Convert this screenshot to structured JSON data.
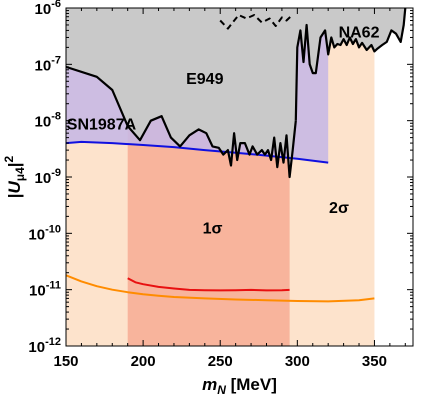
{
  "chart_data": {
    "type": "area",
    "xlabel": "m_N [MeV]",
    "ylabel": "|U_μ4|^2",
    "xlim": [
      150,
      375
    ],
    "ylim_log10": [
      -12,
      -6
    ],
    "y_scale": "log",
    "x_ticks": [
      150,
      200,
      250,
      300,
      350
    ],
    "x_tick_labels": [
      "150",
      "200",
      "250",
      "300",
      "350"
    ],
    "y_ticks_log10": [
      -12,
      -11,
      -10,
      -9,
      -8,
      -7,
      -6
    ],
    "y_tick_labels": [
      {
        "base": "10",
        "exp": "-12"
      },
      {
        "base": "10",
        "exp": "-11"
      },
      {
        "base": "10",
        "exp": "-10"
      },
      {
        "base": "10",
        "exp": "-9"
      },
      {
        "base": "10",
        "exp": "-8"
      },
      {
        "base": "10",
        "exp": "-7"
      },
      {
        "base": "10",
        "exp": "-6"
      }
    ],
    "bands": [
      {
        "name": "2σ",
        "x_range": [
          150,
          350
        ],
        "color": "#fde3cc"
      },
      {
        "name": "1σ",
        "x_range": [
          190,
          295
        ],
        "color": "#f8b49c"
      }
    ],
    "excluded_regions": [
      {
        "name": "SN1987A",
        "color": "#c8b8e4",
        "x_range": [
          150,
          320
        ]
      },
      {
        "name": "E949",
        "color": "#c9c9c9"
      },
      {
        "name": "NA62",
        "color": "#c9c9c9"
      }
    ],
    "series": [
      {
        "name": "SN1987A",
        "color": "#1010e0",
        "x": [
          150,
          160,
          180,
          200,
          220,
          240,
          260,
          280,
          300,
          320
        ],
        "y": [
          4e-09,
          4.2e-09,
          4e-09,
          3.7e-09,
          3.4e-09,
          3e-09,
          2.7e-09,
          2.4e-09,
          2.1e-09,
          1.8e-09
        ]
      },
      {
        "name": "E949",
        "color": "#000000",
        "x": [
          150,
          170,
          180,
          190,
          198,
          205,
          212,
          218,
          224,
          230,
          236,
          241,
          245,
          249,
          252,
          255,
          257,
          259,
          261,
          263,
          266,
          269,
          271,
          274,
          277,
          279,
          281,
          283,
          285,
          287,
          289,
          291,
          293,
          295,
          297,
          299
        ],
        "y": [
          9e-08,
          6e-08,
          3.5e-08,
          8e-09,
          4.5e-09,
          1e-08,
          1.2e-08,
          5e-09,
          3.5e-09,
          5.5e-09,
          7e-09,
          6e-09,
          3.5e-09,
          3.3e-09,
          2.5e-09,
          3e-09,
          1.6e-09,
          6e-09,
          2e-09,
          4e-09,
          4e-09,
          2.5e-09,
          3.5e-09,
          2.5e-09,
          3e-09,
          2.5e-09,
          3e-09,
          2e-09,
          5e-09,
          1.5e-09,
          4e-09,
          1.8e-09,
          5.5e-09,
          1e-09,
          3e-09,
          1e-08
        ]
      },
      {
        "name": "NA62",
        "color": "#000000",
        "x": [
          299,
          300,
          302,
          304,
          306,
          308,
          310,
          312,
          315,
          318,
          320,
          322,
          324,
          326,
          328,
          330,
          332,
          334,
          336,
          338,
          340,
          342,
          345,
          348,
          350,
          352,
          355,
          358,
          361,
          364,
          367,
          369,
          370
        ],
        "y": [
          1e-08,
          2e-07,
          4e-07,
          1.1e-07,
          5e-07,
          1e-07,
          7e-08,
          7e-08,
          3e-07,
          4e-07,
          1.5e-07,
          3e-07,
          2e-07,
          2.3e-07,
          2.2e-07,
          2.8e-07,
          2.2e-07,
          3e-07,
          2.3e-07,
          2.8e-07,
          2e-07,
          2.4e-07,
          1.8e-07,
          2.2e-07,
          1.7e-07,
          1.9e-07,
          2.2e-07,
          2.5e-07,
          4e-07,
          3.5e-07,
          2.5e-07,
          5e-07,
          1e-06
        ]
      },
      {
        "name": "dashed-bound",
        "color": "#000000",
        "dashed": true,
        "x": [
          250,
          255,
          258,
          262,
          267,
          272,
          277,
          282,
          286,
          290,
          293,
          296
        ],
        "y": [
          6e-07,
          4.3e-07,
          5.5e-07,
          7.5e-07,
          6.5e-07,
          7.5e-07,
          5.5e-07,
          6.5e-07,
          4.8e-07,
          6.8e-07,
          6e-07,
          7.2e-07
        ]
      },
      {
        "name": "1σ curve",
        "color": "#e81010",
        "x": [
          190,
          195,
          200,
          210,
          220,
          230,
          240,
          250,
          260,
          270,
          280,
          290,
          295
        ],
        "y": [
          1.6e-11,
          1.35e-11,
          1.25e-11,
          1.12e-11,
          1.05e-11,
          9.9e-12,
          9.8e-12,
          9.7e-12,
          9.8e-12,
          9.9e-12,
          9.7e-12,
          9.8e-12,
          9.9e-12
        ]
      },
      {
        "name": "2σ curve",
        "color": "#ff8c00",
        "x": [
          150,
          160,
          170,
          180,
          190,
          200,
          210,
          220,
          240,
          260,
          280,
          300,
          320,
          340,
          350
        ],
        "y": [
          1.8e-11,
          1.4e-11,
          1.15e-11,
          1e-11,
          9e-12,
          8.3e-12,
          7.8e-12,
          7.4e-12,
          7e-12,
          6.7e-12,
          6.5e-12,
          6.3e-12,
          6.2e-12,
          6.5e-12,
          7e-12
        ]
      }
    ],
    "region_labels": [
      {
        "text": "E949",
        "x": 240,
        "y": 4.5e-08
      },
      {
        "text": "NA62",
        "x": 340,
        "y": 3e-07
      },
      {
        "text": "SN1987A",
        "x": 173,
        "y": 7e-09
      },
      {
        "text": "1σ",
        "x": 245,
        "y": 1e-10
      },
      {
        "text": "2σ",
        "x": 327,
        "y": 2.3e-10
      }
    ]
  }
}
